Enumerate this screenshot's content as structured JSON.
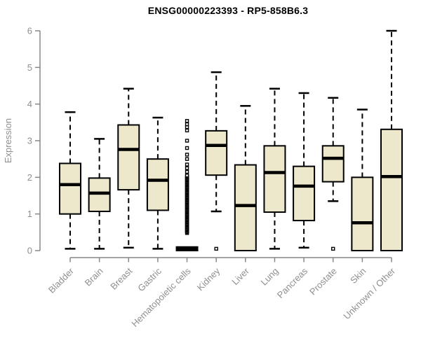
{
  "title": "ENSG00000223393 - RP5-858B6.3",
  "colors": {
    "background": "#FFFFFF",
    "box_fill": "#EDE7CB",
    "box_stroke": "#000000",
    "median_stroke": "#000000",
    "whisker_stroke": "#000000",
    "axis_line": "#878787",
    "axis_text": "#8F8F8F",
    "title_text": "#000000"
  },
  "y_axis": {
    "label": "Expression",
    "ticks": [
      0,
      1,
      2,
      3,
      4,
      5,
      6
    ],
    "min": 0,
    "max": 6
  },
  "chart_data": {
    "type": "boxplot",
    "title": "ENSG00000223393 - RP5-858B6.3",
    "xlabel": "",
    "ylabel": "Expression",
    "ylim": [
      0,
      6
    ],
    "grid": false,
    "legend": "none",
    "categories": [
      "Bladder",
      "Brain",
      "Breast",
      "Gastric",
      "Hematopoietic cells",
      "Kidney",
      "Liver",
      "Lung",
      "Pancreas",
      "Prostate",
      "Skin",
      "Unknown / Other"
    ],
    "series": [
      {
        "name": "Bladder",
        "whisker_low": 0.05,
        "q1": 1.0,
        "median": 1.8,
        "q3": 2.38,
        "whisker_high": 3.78,
        "outliers": []
      },
      {
        "name": "Brain",
        "whisker_low": 0.05,
        "q1": 1.07,
        "median": 1.57,
        "q3": 1.98,
        "whisker_high": 3.05,
        "outliers": []
      },
      {
        "name": "Breast",
        "whisker_low": 0.08,
        "q1": 1.66,
        "median": 2.76,
        "q3": 3.43,
        "whisker_high": 4.42,
        "outliers": []
      },
      {
        "name": "Gastric",
        "whisker_low": 0.05,
        "q1": 1.1,
        "median": 1.92,
        "q3": 2.5,
        "whisker_high": 3.63,
        "outliers": []
      },
      {
        "name": "Hematopoietic cells",
        "whisker_low": 0.0,
        "q1": 0.0,
        "median": 0.04,
        "q3": 0.1,
        "whisker_high": 0.1,
        "outliers": [
          2.15,
          2.25,
          2.35,
          2.5,
          2.62,
          2.8,
          3.0,
          3.28,
          3.37,
          3.45,
          3.54
        ],
        "outliers_dense": {
          "min": 0.48,
          "max": 2.05,
          "count": 60
        }
      },
      {
        "name": "Kidney",
        "whisker_low": 1.07,
        "q1": 2.06,
        "median": 2.87,
        "q3": 3.27,
        "whisker_high": 4.87,
        "outliers": [
          0.05
        ]
      },
      {
        "name": "Liver",
        "whisker_low": 0.0,
        "q1": 0.0,
        "median": 1.23,
        "q3": 2.34,
        "whisker_high": 3.95,
        "outliers": []
      },
      {
        "name": "Lung",
        "whisker_low": 0.05,
        "q1": 1.05,
        "median": 2.13,
        "q3": 2.86,
        "whisker_high": 4.42,
        "outliers": []
      },
      {
        "name": "Pancreas",
        "whisker_low": 0.08,
        "q1": 0.82,
        "median": 1.76,
        "q3": 2.3,
        "whisker_high": 4.3,
        "outliers": []
      },
      {
        "name": "Prostate",
        "whisker_low": 1.35,
        "q1": 1.88,
        "median": 2.52,
        "q3": 2.86,
        "whisker_high": 4.17,
        "outliers": [
          0.05
        ]
      },
      {
        "name": "Skin",
        "whisker_low": 0.0,
        "q1": 0.0,
        "median": 0.76,
        "q3": 2.0,
        "whisker_high": 3.85,
        "outliers": []
      },
      {
        "name": "Unknown / Other",
        "whisker_low": 0.0,
        "q1": 0.0,
        "median": 2.02,
        "q3": 3.31,
        "whisker_high": 6.0,
        "outliers": []
      }
    ]
  }
}
